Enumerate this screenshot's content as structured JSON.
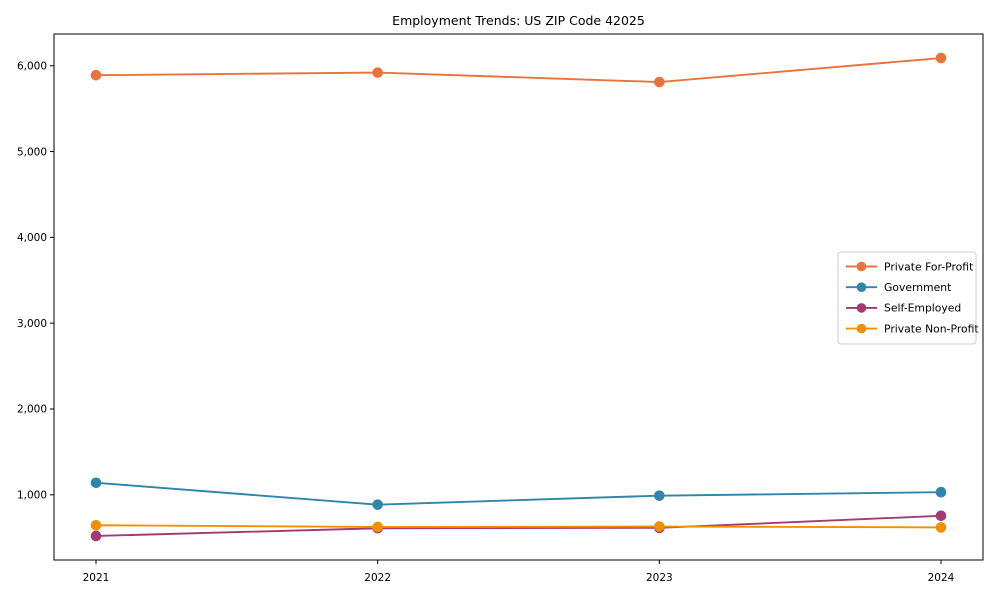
{
  "chart_data": {
    "type": "line",
    "title": "Employment Trends: US ZIP Code 42025",
    "categories": [
      "2021",
      "2022",
      "2023",
      "2024"
    ],
    "series": [
      {
        "name": "Private For-Profit",
        "color": "#E8743B",
        "values": [
          5890,
          5920,
          5810,
          6090
        ]
      },
      {
        "name": "Government",
        "color": "#2E86AB",
        "values": [
          1140,
          885,
          990,
          1030
        ]
      },
      {
        "name": "Self-Employed",
        "color": "#A23B72",
        "values": [
          520,
          610,
          615,
          755
        ]
      },
      {
        "name": "Private Non-Profit",
        "color": "#F18F01",
        "values": [
          645,
          625,
          630,
          620
        ]
      }
    ],
    "xlabel": "",
    "ylabel": "",
    "ylim": [
      240,
      6370
    ],
    "yticks": [
      1000,
      2000,
      3000,
      4000,
      5000,
      6000
    ],
    "ytick_labels": [
      "1,000",
      "2,000",
      "3,000",
      "4,000",
      "5,000",
      "6,000"
    ],
    "grid": false,
    "legend_position": "center right",
    "marker": "circle",
    "axes_color": "#000000",
    "legend_border_color": "#cccccc",
    "legend_background": "#ffffff"
  }
}
